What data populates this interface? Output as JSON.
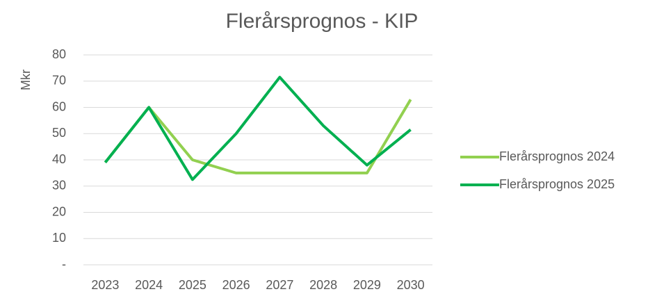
{
  "chart_data": {
    "type": "line",
    "title": "Flerårsprognos - KIP",
    "y_label": "Mkr",
    "categories": [
      "2023",
      "2024",
      "2025",
      "2026",
      "2027",
      "2028",
      "2029",
      "2030"
    ],
    "series": [
      {
        "name": "Flerårsprognos 2024",
        "color": "#92d050",
        "values": [
          39,
          60,
          40,
          35,
          35,
          35,
          35,
          63
        ]
      },
      {
        "name": "Flerårsprognos 2025",
        "color": "#00b050",
        "values": [
          39,
          60,
          32.5,
          50,
          71.5,
          53,
          38,
          51.5
        ]
      }
    ],
    "ylim": [
      0,
      80
    ],
    "yticks": [
      {
        "value": 0,
        "label": "-"
      },
      10,
      20,
      30,
      40,
      50,
      60,
      70,
      80
    ],
    "grid": true,
    "legend": "right"
  }
}
